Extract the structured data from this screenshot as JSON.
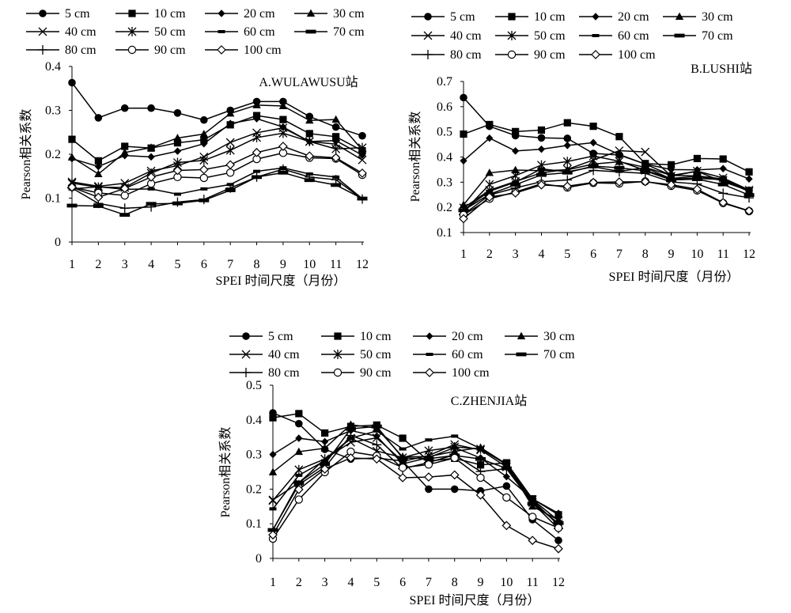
{
  "chart_data": [
    {
      "type": "line",
      "title": "A.WULAWUSU站",
      "xlabel": "SPEI 时间尺度（月份）",
      "ylabel": "Pearson相关系数",
      "categories": [
        "1",
        "2",
        "3",
        "4",
        "5",
        "6",
        "7",
        "8",
        "9",
        "10",
        "11",
        "12"
      ],
      "ylim": [
        0,
        0.4
      ],
      "yticks": [
        "0",
        "0.1",
        "0.2",
        "0.3",
        "0.4"
      ],
      "legend": "top",
      "series": [
        {
          "name": "5 cm",
          "values": [
            0.363,
            0.283,
            0.305,
            0.305,
            0.294,
            0.278,
            0.3,
            0.32,
            0.32,
            0.286,
            0.262,
            0.242
          ]
        },
        {
          "name": "10 cm",
          "values": [
            0.234,
            0.185,
            0.218,
            0.214,
            0.226,
            0.233,
            0.267,
            0.288,
            0.279,
            0.247,
            0.24,
            0.208
          ]
        },
        {
          "name": "20 cm",
          "values": [
            0.19,
            0.172,
            0.197,
            0.194,
            0.207,
            0.224,
            0.27,
            0.281,
            0.262,
            0.229,
            0.231,
            0.198
          ]
        },
        {
          "name": "30 cm",
          "values": [
            0.193,
            0.155,
            0.204,
            0.215,
            0.237,
            0.246,
            0.293,
            0.312,
            0.31,
            0.277,
            0.279,
            0.21
          ]
        },
        {
          "name": "40 cm",
          "values": [
            0.137,
            0.127,
            0.134,
            0.162,
            0.174,
            0.194,
            0.227,
            0.249,
            0.26,
            0.229,
            0.223,
            0.187
          ]
        },
        {
          "name": "50 cm",
          "values": [
            0.134,
            0.125,
            0.124,
            0.157,
            0.181,
            0.186,
            0.209,
            0.238,
            0.248,
            0.229,
            0.212,
            0.215
          ]
        },
        {
          "name": "60 cm",
          "values": [
            0.121,
            0.126,
            0.12,
            0.121,
            0.109,
            0.121,
            0.131,
            0.161,
            0.169,
            0.155,
            0.148,
            0.099
          ]
        },
        {
          "name": "70 cm",
          "values": [
            0.083,
            0.082,
            0.062,
            0.087,
            0.088,
            0.095,
            0.118,
            0.148,
            0.158,
            0.141,
            0.13,
            0.099
          ]
        },
        {
          "name": "80 cm",
          "values": [
            0.123,
            0.088,
            0.077,
            0.08,
            0.091,
            0.097,
            0.123,
            0.148,
            0.166,
            0.148,
            0.142,
            0.098
          ]
        },
        {
          "name": "90 cm",
          "values": [
            0.125,
            0.112,
            0.106,
            0.133,
            0.148,
            0.146,
            0.158,
            0.189,
            0.203,
            0.192,
            0.19,
            0.153
          ]
        },
        {
          "name": "100 cm",
          "values": [
            0.125,
            0.102,
            0.122,
            0.148,
            0.163,
            0.165,
            0.176,
            0.204,
            0.218,
            0.196,
            0.192,
            0.157
          ]
        }
      ]
    },
    {
      "type": "line",
      "title": "B.LUSHI站",
      "xlabel": "SPEI 时间尺度（月份）",
      "ylabel": "Pearson相关系数",
      "categories": [
        "1",
        "2",
        "3",
        "4",
        "5",
        "6",
        "7",
        "8",
        "9",
        "10",
        "11",
        "12"
      ],
      "ylim": [
        0.1,
        0.7
      ],
      "yticks": [
        "0.1",
        "0.2",
        "0.3",
        "0.4",
        "0.5",
        "0.6",
        "0.7"
      ],
      "legend": "top",
      "series": [
        {
          "name": "5 cm",
          "values": [
            0.636,
            0.522,
            0.485,
            0.476,
            0.474,
            0.414,
            0.408,
            0.372,
            0.327,
            0.325,
            0.313,
            0.268
          ]
        },
        {
          "name": "10 cm",
          "values": [
            0.491,
            0.529,
            0.501,
            0.507,
            0.536,
            0.522,
            0.481,
            0.374,
            0.369,
            0.394,
            0.392,
            0.341
          ]
        },
        {
          "name": "20 cm",
          "values": [
            0.385,
            0.475,
            0.424,
            0.431,
            0.446,
            0.457,
            0.41,
            0.372,
            0.35,
            0.349,
            0.354,
            0.313
          ]
        },
        {
          "name": "30 cm",
          "values": [
            0.21,
            0.337,
            0.348,
            0.346,
            0.349,
            0.372,
            0.381,
            0.359,
            0.327,
            0.343,
            0.302,
            0.266
          ]
        },
        {
          "name": "40 cm",
          "values": [
            0.198,
            0.268,
            0.303,
            0.337,
            0.351,
            0.388,
            0.425,
            0.42,
            0.324,
            0.344,
            0.317,
            0.269
          ]
        },
        {
          "name": "50 cm",
          "values": [
            0.183,
            0.291,
            0.326,
            0.368,
            0.382,
            0.404,
            0.383,
            0.347,
            0.315,
            0.323,
            0.307,
            0.263
          ]
        },
        {
          "name": "60 cm",
          "values": [
            0.19,
            0.264,
            0.3,
            0.353,
            0.341,
            0.361,
            0.343,
            0.358,
            0.313,
            0.315,
            0.31,
            0.265
          ]
        },
        {
          "name": "70 cm",
          "values": [
            0.188,
            0.252,
            0.29,
            0.329,
            0.338,
            0.364,
            0.357,
            0.345,
            0.309,
            0.312,
            0.291,
            0.249
          ]
        },
        {
          "name": "80 cm",
          "values": [
            0.172,
            0.249,
            0.277,
            0.302,
            0.309,
            0.347,
            0.341,
            0.335,
            0.301,
            0.293,
            0.256,
            0.238
          ]
        },
        {
          "name": "90 cm",
          "values": [
            0.17,
            0.234,
            0.261,
            0.294,
            0.279,
            0.297,
            0.295,
            0.303,
            0.285,
            0.267,
            0.217,
            0.185
          ]
        },
        {
          "name": "100 cm",
          "values": [
            0.155,
            0.241,
            0.257,
            0.289,
            0.284,
            0.299,
            0.301,
            0.302,
            0.29,
            0.272,
            0.219,
            0.186
          ]
        }
      ]
    },
    {
      "type": "line",
      "title": "C.ZHENJIA站",
      "xlabel": "SPEI 时间尺度（月份）",
      "ylabel": "Pearson相关系数",
      "categories": [
        "1",
        "2",
        "3",
        "4",
        "5",
        "6",
        "7",
        "8",
        "9",
        "10",
        "11",
        "12"
      ],
      "ylim": [
        0,
        0.5
      ],
      "yticks": [
        "0",
        "0.1",
        "0.2",
        "0.3",
        "0.4",
        "0.5"
      ],
      "legend": "top",
      "series": [
        {
          "name": "5 cm",
          "values": [
            0.42,
            0.389,
            0.315,
            0.287,
            0.29,
            0.281,
            0.2,
            0.2,
            0.195,
            0.209,
            0.112,
            0.052
          ]
        },
        {
          "name": "10 cm",
          "values": [
            0.406,
            0.418,
            0.362,
            0.381,
            0.385,
            0.347,
            0.281,
            0.289,
            0.27,
            0.276,
            0.172,
            0.126
          ]
        },
        {
          "name": "20 cm",
          "values": [
            0.3,
            0.347,
            0.337,
            0.369,
            0.353,
            0.273,
            0.291,
            0.32,
            0.29,
            0.236,
            0.172,
            0.13
          ]
        },
        {
          "name": "30 cm",
          "values": [
            0.249,
            0.308,
            0.318,
            0.386,
            0.376,
            0.293,
            0.294,
            0.309,
            0.32,
            0.272,
            0.15,
            0.111
          ]
        },
        {
          "name": "40 cm",
          "values": [
            0.169,
            0.218,
            0.287,
            0.335,
            0.348,
            0.28,
            0.297,
            0.329,
            0.313,
            0.264,
            0.17,
            0.109
          ]
        },
        {
          "name": "50 cm",
          "values": [
            0.167,
            0.256,
            0.287,
            0.347,
            0.31,
            0.291,
            0.311,
            0.322,
            0.316,
            0.271,
            0.161,
            0.1
          ]
        },
        {
          "name": "60 cm",
          "values": [
            0.143,
            0.24,
            0.282,
            0.347,
            0.368,
            0.316,
            0.342,
            0.353,
            0.317,
            0.273,
            0.168,
            0.096
          ]
        },
        {
          "name": "70 cm",
          "values": [
            0.082,
            0.219,
            0.272,
            0.374,
            0.381,
            0.29,
            0.288,
            0.297,
            0.287,
            0.26,
            0.158,
            0.102
          ]
        },
        {
          "name": "80 cm",
          "values": [
            0.083,
            0.213,
            0.263,
            0.355,
            0.328,
            0.259,
            0.277,
            0.299,
            0.251,
            0.259,
            0.16,
            0.086
          ]
        },
        {
          "name": "90 cm",
          "values": [
            0.057,
            0.17,
            0.249,
            0.308,
            0.296,
            0.262,
            0.271,
            0.29,
            0.233,
            0.176,
            0.12,
            0.088
          ]
        },
        {
          "name": "100 cm",
          "values": [
            0.068,
            0.199,
            0.258,
            0.29,
            0.287,
            0.233,
            0.235,
            0.241,
            0.183,
            0.095,
            0.052,
            0.028
          ]
        }
      ]
    }
  ]
}
